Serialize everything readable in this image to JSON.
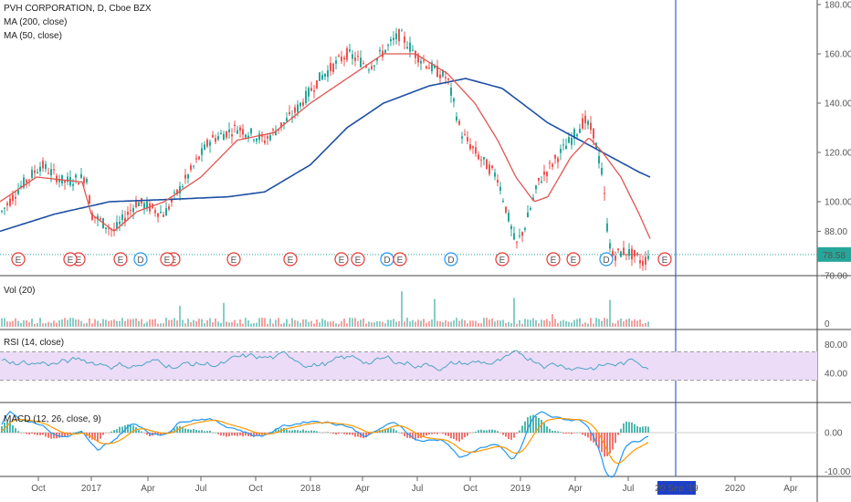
{
  "header": {
    "title": "PVH CORPORATION, D, Cboe BZX",
    "ma200": "MA (200, close)",
    "ma50": "MA (50, close)"
  },
  "panes": {
    "vol": "Vol (20)",
    "rsi": "RSI (14, close)",
    "macd": "MACD (12, 26, close, 9)"
  },
  "price_axis": {
    "ticks": [
      "180.00",
      "160.00",
      "140.00",
      "120.00",
      "100.00",
      "88.00",
      "70.00"
    ],
    "last_price": "78.58"
  },
  "vol_axis": {
    "ticks": [
      "0"
    ]
  },
  "rsi_axis": {
    "ticks": [
      "80.00",
      "40.00"
    ]
  },
  "macd_axis": {
    "ticks": [
      "0.00",
      "-10.00"
    ]
  },
  "time_axis": {
    "labels": [
      "Oct",
      "2017",
      "Apr",
      "Jul",
      "Oct",
      "2018",
      "Apr",
      "Jul",
      "Oct",
      "2019",
      "Apr",
      "Jul",
      "2020",
      "Apr"
    ],
    "cursor_label": "20 Sep '19"
  },
  "events": [
    "E",
    "E",
    "E",
    "D",
    "E",
    "E",
    "E",
    "E",
    "E",
    "D",
    "E",
    "D",
    "E",
    "E",
    "E",
    "D",
    "E",
    "E",
    "E"
  ],
  "colors": {
    "up": "#26a69a",
    "down": "#ef5350",
    "ma50": "#e05550",
    "ma200": "#1e4fa3",
    "rsi": "#4fa3c7",
    "rsi_band": "#ecdcf7",
    "macd": "#2196f3",
    "signal": "#ff9800",
    "cursor": "#3a5fc8"
  },
  "chart_data": {
    "type": "line",
    "title": "PVH CORPORATION, D, Cboe BZX",
    "x": [
      "2016-08-15",
      "2016-10-01",
      "2017-01-01",
      "2017-04-01",
      "2017-07-01",
      "2017-10-01",
      "2018-01-01",
      "2018-04-01",
      "2018-06-15",
      "2018-08-15",
      "2018-10-01",
      "2018-12-01",
      "2019-01-01",
      "2019-03-01",
      "2019-04-15",
      "2019-05-15",
      "2019-06-10",
      "2019-07-10",
      "2019-08-20"
    ],
    "series": [
      {
        "name": "PVH",
        "values": [
          95,
          112,
          88,
          100,
          115,
          128,
          148,
          160,
          165,
          152,
          130,
          95,
          108,
          118,
          132,
          118,
          92,
          92,
          78.58
        ]
      },
      {
        "name": "MA (50, close)",
        "values": [
          100,
          108,
          100,
          95,
          108,
          125,
          138,
          152,
          160,
          155,
          145,
          120,
          112,
          112,
          124,
          120,
          102,
          92,
          85
        ]
      },
      {
        "name": "MA (200, close)",
        "values": [
          88,
          95,
          100,
          101,
          103,
          110,
          125,
          140,
          147,
          150,
          147,
          138,
          132,
          127,
          124,
          120,
          116,
          113,
          110
        ]
      }
    ],
    "ylim": [
      70,
      180
    ],
    "xlabel": "",
    "ylabel": ""
  }
}
